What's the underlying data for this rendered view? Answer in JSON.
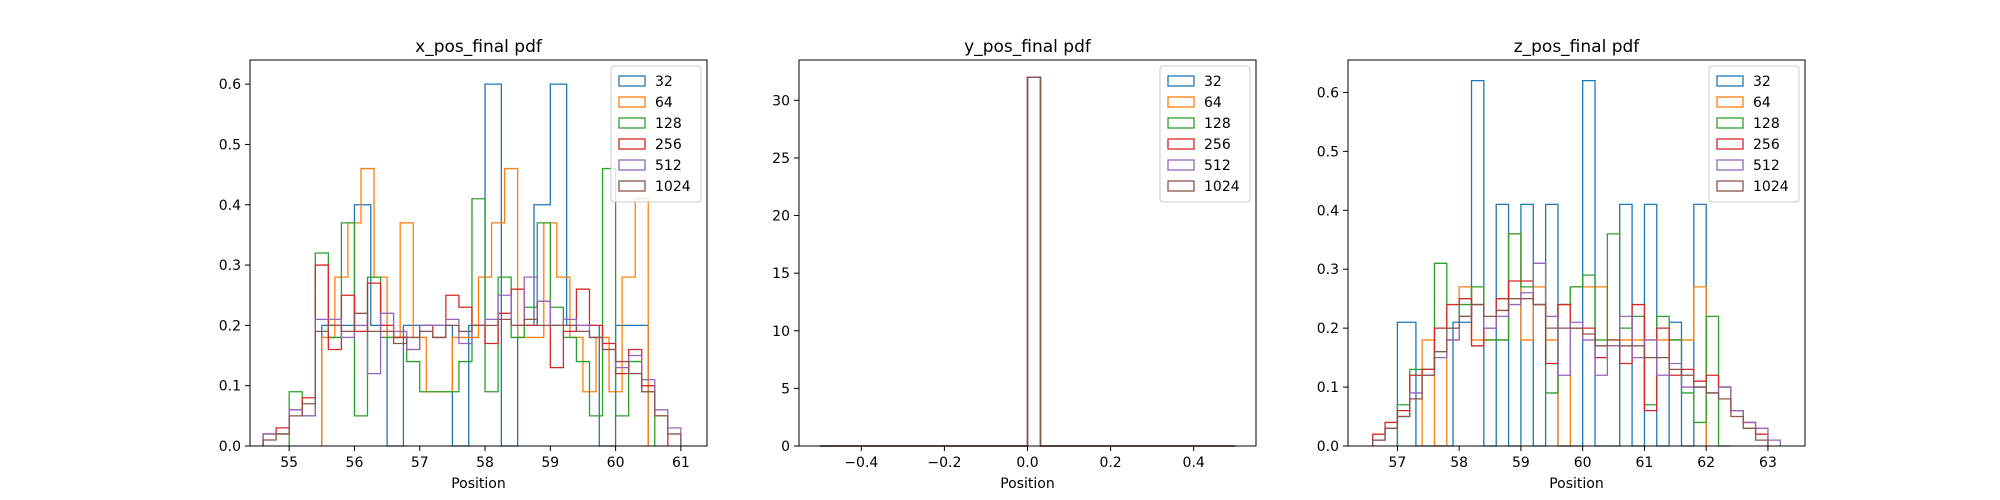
{
  "colors": [
    "#1f77b4",
    "#ff7f0e",
    "#2ca02c",
    "#d62728",
    "#9467bd",
    "#8c564b"
  ],
  "chart_data": [
    {
      "type": "histogram-step",
      "title": "x_pos_final pdf",
      "xlabel": "Position",
      "ylabel": "",
      "xlim": [
        54.4,
        61.4
      ],
      "ylim": [
        0,
        0.64
      ],
      "xticks": [
        55,
        56,
        57,
        58,
        59,
        60,
        61
      ],
      "yticks": [
        0.0,
        0.1,
        0.2,
        0.3,
        0.4,
        0.5,
        0.6
      ],
      "ytick_labels": [
        "0.0",
        "0.1",
        "0.2",
        "0.3",
        "0.4",
        "0.5",
        "0.6"
      ],
      "legend_position": "upper right",
      "series": [
        {
          "name": "32",
          "edges": [
            55.5,
            55.75,
            56.0,
            56.25,
            56.5,
            56.75,
            57.0,
            57.25,
            57.5,
            57.75,
            58.0,
            58.25,
            58.5,
            58.75,
            59.0,
            59.25,
            59.5,
            59.75,
            60.0,
            60.25,
            60.5
          ],
          "values": [
            0.2,
            0.2,
            0.4,
            0.2,
            0.0,
            0.2,
            0.2,
            0.2,
            0.0,
            0.2,
            0.6,
            0.0,
            0.2,
            0.4,
            0.6,
            0.2,
            0.2,
            0.0,
            0.2,
            0.2
          ]
        },
        {
          "name": "64",
          "edges": [
            55.5,
            55.7,
            55.9,
            56.1,
            56.3,
            56.5,
            56.7,
            56.9,
            57.1,
            57.3,
            57.5,
            57.7,
            57.9,
            58.1,
            58.3,
            58.5,
            58.7,
            58.9,
            59.1,
            59.3,
            59.5,
            59.7,
            59.9,
            60.1,
            60.3,
            60.5
          ],
          "values": [
            0.18,
            0.28,
            0.37,
            0.46,
            0.28,
            0.18,
            0.37,
            0.18,
            0.09,
            0.09,
            0.18,
            0.18,
            0.28,
            0.37,
            0.46,
            0.18,
            0.18,
            0.37,
            0.28,
            0.18,
            0.09,
            0.18,
            0.09,
            0.28,
            0.41
          ]
        },
        {
          "name": "128",
          "edges": [
            55.0,
            55.2,
            55.4,
            55.6,
            55.8,
            56.0,
            56.2,
            56.4,
            56.6,
            56.8,
            57.0,
            57.2,
            57.4,
            57.6,
            57.8,
            58.0,
            58.2,
            58.4,
            58.6,
            58.8,
            59.0,
            59.2,
            59.4,
            59.6,
            59.8,
            60.0,
            60.2,
            60.4,
            60.6
          ],
          "values": [
            0.09,
            0.05,
            0.32,
            0.18,
            0.37,
            0.05,
            0.28,
            0.18,
            0.18,
            0.14,
            0.09,
            0.09,
            0.09,
            0.14,
            0.41,
            0.09,
            0.28,
            0.18,
            0.23,
            0.37,
            0.23,
            0.18,
            0.14,
            0.05,
            0.46,
            0.05,
            0.14,
            0.09,
            0.0
          ]
        },
        {
          "name": "256",
          "edges": [
            54.6,
            54.8,
            55.0,
            55.2,
            55.4,
            55.6,
            55.8,
            56.0,
            56.2,
            56.4,
            56.6,
            56.8,
            57.0,
            57.2,
            57.4,
            57.6,
            57.8,
            58.0,
            58.2,
            58.4,
            58.6,
            58.8,
            59.0,
            59.2,
            59.4,
            59.6,
            59.8,
            60.0,
            60.2,
            60.4,
            60.6,
            60.8
          ],
          "values": [
            0.02,
            0.03,
            0.06,
            0.08,
            0.3,
            0.16,
            0.25,
            0.19,
            0.27,
            0.2,
            0.18,
            0.16,
            0.2,
            0.18,
            0.25,
            0.23,
            0.2,
            0.17,
            0.22,
            0.26,
            0.2,
            0.24,
            0.13,
            0.19,
            0.26,
            0.2,
            0.17,
            0.12,
            0.16,
            0.1,
            0.05
          ]
        },
        {
          "name": "512",
          "edges": [
            54.6,
            54.8,
            55.0,
            55.2,
            55.4,
            55.6,
            55.8,
            56.0,
            56.2,
            56.4,
            56.6,
            56.8,
            57.0,
            57.2,
            57.4,
            57.6,
            57.8,
            58.0,
            58.2,
            58.4,
            58.6,
            58.8,
            59.0,
            59.2,
            59.4,
            59.6,
            59.8,
            60.0,
            60.2,
            60.4,
            60.6,
            60.8,
            61.0
          ],
          "values": [
            0.02,
            0.02,
            0.06,
            0.05,
            0.21,
            0.21,
            0.18,
            0.2,
            0.12,
            0.22,
            0.19,
            0.16,
            0.2,
            0.2,
            0.21,
            0.17,
            0.2,
            0.21,
            0.25,
            0.2,
            0.28,
            0.24,
            0.2,
            0.21,
            0.2,
            0.18,
            0.16,
            0.13,
            0.15,
            0.11,
            0.06,
            0.03
          ]
        },
        {
          "name": "1024",
          "edges": [
            54.6,
            54.8,
            55.0,
            55.2,
            55.4,
            55.6,
            55.8,
            56.0,
            56.2,
            56.4,
            56.6,
            56.8,
            57.0,
            57.2,
            57.4,
            57.6,
            57.8,
            58.0,
            58.2,
            58.4,
            58.6,
            58.8,
            59.0,
            59.2,
            59.4,
            59.6,
            59.8,
            60.0,
            60.2,
            60.4,
            60.6,
            60.8,
            61.0
          ],
          "values": [
            0.01,
            0.02,
            0.05,
            0.07,
            0.19,
            0.2,
            0.19,
            0.22,
            0.19,
            0.19,
            0.17,
            0.18,
            0.19,
            0.18,
            0.2,
            0.19,
            0.2,
            0.2,
            0.21,
            0.2,
            0.21,
            0.2,
            0.2,
            0.2,
            0.19,
            0.18,
            0.16,
            0.14,
            0.12,
            0.09,
            0.05,
            0.02
          ]
        }
      ]
    },
    {
      "type": "histogram-step",
      "title": "y_pos_final pdf",
      "xlabel": "Position",
      "ylabel": "",
      "xlim": [
        -0.55,
        0.55
      ],
      "ylim": [
        0,
        33.5
      ],
      "xticks": [
        -0.4,
        -0.2,
        0.0,
        0.2,
        0.4
      ],
      "xtick_labels": [
        "−0.4",
        "−0.2",
        "0.0",
        "0.2",
        "0.4"
      ],
      "yticks": [
        0,
        5,
        10,
        15,
        20,
        25,
        30
      ],
      "ytick_labels": [
        "0",
        "5",
        "10",
        "15",
        "20",
        "25",
        "30"
      ],
      "legend_position": "upper right",
      "series": [
        {
          "name": "32",
          "edges": [
            -0.5,
            0.0,
            0.03125,
            0.5
          ],
          "values": [
            0,
            32,
            0
          ]
        },
        {
          "name": "64",
          "edges": [
            -0.5,
            0.0,
            0.03125,
            0.5
          ],
          "values": [
            0,
            32,
            0
          ]
        },
        {
          "name": "128",
          "edges": [
            -0.5,
            0.0,
            0.03125,
            0.5
          ],
          "values": [
            0,
            32,
            0
          ]
        },
        {
          "name": "256",
          "edges": [
            -0.5,
            0.0,
            0.03125,
            0.5
          ],
          "values": [
            0,
            32,
            0
          ]
        },
        {
          "name": "512",
          "edges": [
            -0.5,
            0.0,
            0.03125,
            0.5
          ],
          "values": [
            0,
            32,
            0
          ]
        },
        {
          "name": "1024",
          "edges": [
            -0.5,
            0.0,
            0.03125,
            0.5
          ],
          "values": [
            0,
            32,
            0
          ]
        }
      ]
    },
    {
      "type": "histogram-step",
      "title": "z_pos_final pdf",
      "xlabel": "Position",
      "ylabel": "",
      "xlim": [
        56.2,
        63.6
      ],
      "ylim": [
        0,
        0.655
      ],
      "xticks": [
        57,
        58,
        59,
        60,
        61,
        62,
        63
      ],
      "yticks": [
        0.0,
        0.1,
        0.2,
        0.3,
        0.4,
        0.5,
        0.6
      ],
      "ytick_labels": [
        "0.0",
        "0.1",
        "0.2",
        "0.3",
        "0.4",
        "0.5",
        "0.6"
      ],
      "legend_position": "upper right",
      "series": [
        {
          "name": "32",
          "edges": [
            57.0,
            57.3,
            57.6,
            57.9,
            58.2,
            58.4,
            58.6,
            58.8,
            59.0,
            59.2,
            59.4,
            59.6,
            59.8,
            60.0,
            60.2,
            60.4,
            60.6,
            60.8,
            61.0,
            61.2,
            61.4,
            61.6,
            61.8,
            62.0
          ],
          "values": [
            0.21,
            0.0,
            0.0,
            0.21,
            0.62,
            0.0,
            0.41,
            0.0,
            0.41,
            0.0,
            0.41,
            0.0,
            0.0,
            0.62,
            0.0,
            0.0,
            0.41,
            0.0,
            0.41,
            0.0,
            0.21,
            0.0,
            0.41
          ]
        },
        {
          "name": "64",
          "edges": [
            57.4,
            57.6,
            57.8,
            58.0,
            58.2,
            58.4,
            58.6,
            58.8,
            59.0,
            59.2,
            59.4,
            59.6,
            59.8,
            60.0,
            60.2,
            60.4,
            60.6,
            60.8,
            61.0,
            61.2,
            61.4,
            61.6,
            61.8,
            62.0
          ],
          "values": [
            0.18,
            0.0,
            0.18,
            0.27,
            0.18,
            0.18,
            0.18,
            0.36,
            0.18,
            0.27,
            0.18,
            0.0,
            0.27,
            0.27,
            0.27,
            0.18,
            0.18,
            0.18,
            0.18,
            0.18,
            0.18,
            0.18,
            0.27
          ]
        },
        {
          "name": "128",
          "edges": [
            57.0,
            57.2,
            57.4,
            57.6,
            57.8,
            58.0,
            58.2,
            58.4,
            58.6,
            58.8,
            59.0,
            59.2,
            59.4,
            59.6,
            59.8,
            60.0,
            60.2,
            60.4,
            60.6,
            60.8,
            61.0,
            61.2,
            61.4,
            61.6,
            61.8,
            62.0,
            62.2,
            62.4
          ],
          "values": [
            0.07,
            0.13,
            0.13,
            0.31,
            0.2,
            0.24,
            0.27,
            0.18,
            0.18,
            0.36,
            0.27,
            0.31,
            0.09,
            0.24,
            0.27,
            0.29,
            0.18,
            0.36,
            0.2,
            0.22,
            0.07,
            0.22,
            0.18,
            0.09,
            0.04,
            0.22,
            0.0
          ]
        },
        {
          "name": "256",
          "edges": [
            56.6,
            56.8,
            57.0,
            57.2,
            57.4,
            57.6,
            57.8,
            58.0,
            58.2,
            58.4,
            58.6,
            58.8,
            59.0,
            59.2,
            59.4,
            59.6,
            59.8,
            60.0,
            60.2,
            60.4,
            60.6,
            60.8,
            61.0,
            61.2,
            61.4,
            61.6,
            61.8,
            62.0,
            62.2,
            62.4,
            62.6,
            62.8,
            63.0
          ],
          "values": [
            0.02,
            0.04,
            0.06,
            0.12,
            0.13,
            0.2,
            0.24,
            0.25,
            0.17,
            0.2,
            0.25,
            0.28,
            0.28,
            0.24,
            0.14,
            0.24,
            0.2,
            0.2,
            0.15,
            0.17,
            0.14,
            0.24,
            0.06,
            0.2,
            0.12,
            0.13,
            0.11,
            0.12,
            0.1,
            0.06,
            0.04,
            0.02
          ]
        },
        {
          "name": "512",
          "edges": [
            56.6,
            56.8,
            57.0,
            57.2,
            57.4,
            57.6,
            57.8,
            58.0,
            58.2,
            58.4,
            58.6,
            58.8,
            59.0,
            59.2,
            59.4,
            59.6,
            59.8,
            60.0,
            60.2,
            60.4,
            60.6,
            60.8,
            61.0,
            61.2,
            61.4,
            61.6,
            61.8,
            62.0,
            62.2,
            62.4,
            62.6,
            62.8,
            63.0,
            63.2
          ],
          "values": [
            0.01,
            0.03,
            0.05,
            0.09,
            0.12,
            0.15,
            0.18,
            0.22,
            0.24,
            0.2,
            0.22,
            0.24,
            0.26,
            0.31,
            0.22,
            0.12,
            0.21,
            0.18,
            0.12,
            0.17,
            0.22,
            0.15,
            0.18,
            0.12,
            0.14,
            0.1,
            0.1,
            0.09,
            0.1,
            0.06,
            0.04,
            0.03,
            0.01
          ]
        },
        {
          "name": "1024",
          "edges": [
            56.6,
            56.8,
            57.0,
            57.2,
            57.4,
            57.6,
            57.8,
            58.0,
            58.2,
            58.4,
            58.6,
            58.8,
            59.0,
            59.2,
            59.4,
            59.6,
            59.8,
            60.0,
            60.2,
            60.4,
            60.6,
            60.8,
            61.0,
            61.2,
            61.4,
            61.6,
            61.8,
            62.0,
            62.2,
            62.4,
            62.6,
            62.8,
            63.0
          ],
          "values": [
            0.01,
            0.03,
            0.05,
            0.08,
            0.12,
            0.16,
            0.2,
            0.22,
            0.24,
            0.22,
            0.23,
            0.25,
            0.25,
            0.24,
            0.2,
            0.2,
            0.2,
            0.19,
            0.17,
            0.18,
            0.17,
            0.17,
            0.15,
            0.15,
            0.13,
            0.12,
            0.1,
            0.09,
            0.08,
            0.05,
            0.03,
            0.01
          ]
        }
      ]
    }
  ]
}
